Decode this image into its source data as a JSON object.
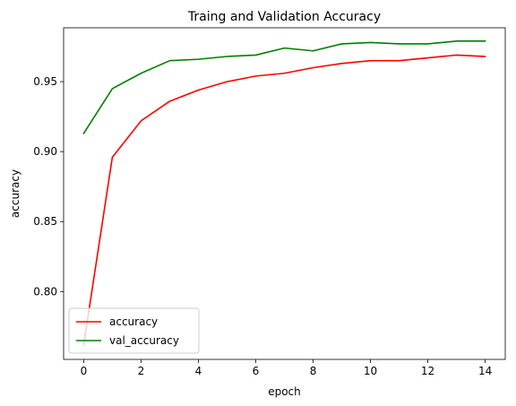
{
  "chart_data": {
    "type": "line",
    "title": "Traing and Validation Accuracy",
    "xlabel": "epoch",
    "ylabel": "accuracy",
    "x": [
      0,
      1,
      2,
      3,
      4,
      5,
      6,
      7,
      8,
      9,
      10,
      11,
      12,
      13,
      14
    ],
    "xlim": [
      -0.7,
      14.7
    ],
    "ylim": [
      0.7515,
      0.9885
    ],
    "xticks": [
      0,
      2,
      4,
      6,
      8,
      10,
      12,
      14
    ],
    "yticks": [
      0.8,
      0.85,
      0.9,
      0.95
    ],
    "xtick_labels": [
      "0",
      "2",
      "4",
      "6",
      "8",
      "10",
      "12",
      "14"
    ],
    "ytick_labels": [
      "0.80",
      "0.85",
      "0.90",
      "0.95"
    ],
    "series": [
      {
        "name": "accuracy",
        "color": "#ff0000",
        "values": [
          0.762,
          0.896,
          0.922,
          0.936,
          0.944,
          0.95,
          0.954,
          0.956,
          0.96,
          0.963,
          0.965,
          0.965,
          0.967,
          0.969,
          0.968
        ]
      },
      {
        "name": "val_accuracy",
        "color": "#008000",
        "values": [
          0.913,
          0.945,
          0.956,
          0.965,
          0.966,
          0.968,
          0.969,
          0.974,
          0.972,
          0.977,
          0.978,
          0.977,
          0.977,
          0.979,
          0.979
        ]
      }
    ],
    "grid": false,
    "legend_position": "lower-left"
  }
}
